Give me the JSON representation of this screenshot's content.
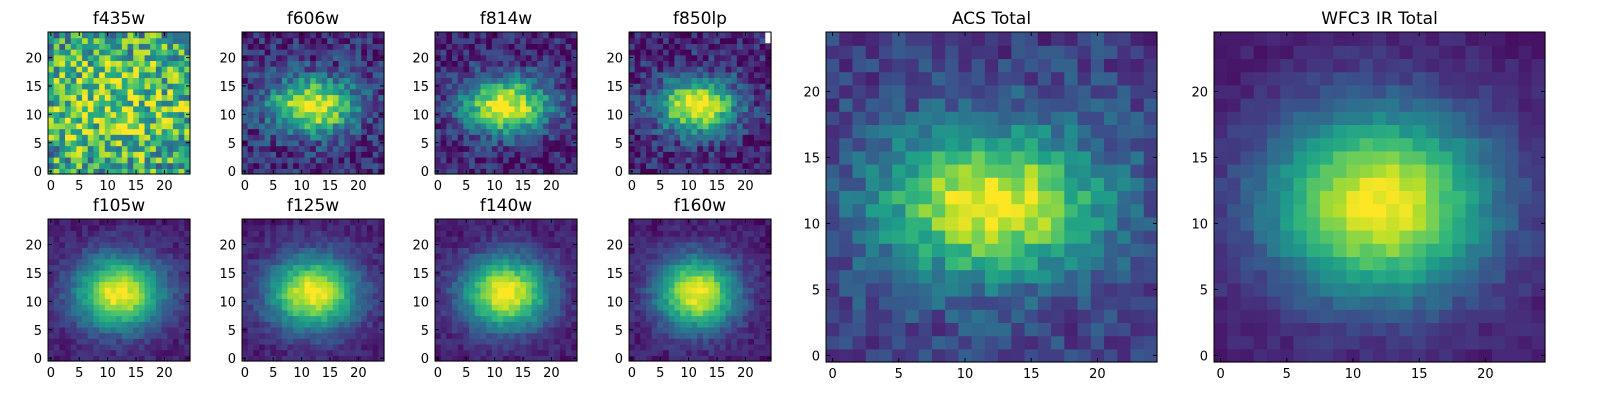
{
  "figure": {
    "colormap": "viridis",
    "colormap_stops": [
      "#440154",
      "#482878",
      "#3e4989",
      "#31688e",
      "#26828e",
      "#1f9e89",
      "#35b779",
      "#6ece58",
      "#b5de2b",
      "#fde725"
    ],
    "background": "#ffffff"
  },
  "chart_data": [
    {
      "type": "heatmap",
      "title": "f435w",
      "grid_size": 25,
      "xticks": [
        0,
        5,
        10,
        15,
        20
      ],
      "yticks": [
        0,
        5,
        10,
        15,
        20
      ],
      "xlim": [
        0,
        24
      ],
      "ylim": [
        0,
        24
      ],
      "center": [
        12,
        11.5
      ],
      "sigma": [
        12,
        9
      ],
      "peak": 0.8,
      "base": 0.45,
      "noise": 0.35,
      "note_values": "pixel intensity map, noisy near-uniform"
    },
    {
      "type": "heatmap",
      "title": "f606w",
      "grid_size": 25,
      "xticks": [
        0,
        5,
        10,
        15,
        20
      ],
      "yticks": [
        0,
        5,
        10,
        15,
        20
      ],
      "xlim": [
        0,
        24
      ],
      "ylim": [
        0,
        24
      ],
      "center": [
        12,
        11.5
      ],
      "sigma": [
        5.5,
        3.5
      ],
      "peak": 1.0,
      "base": 0.12,
      "noise": 0.18
    },
    {
      "type": "heatmap",
      "title": "f814w",
      "grid_size": 25,
      "xticks": [
        0,
        5,
        10,
        15,
        20
      ],
      "yticks": [
        0,
        5,
        10,
        15,
        20
      ],
      "xlim": [
        0,
        24
      ],
      "ylim": [
        0,
        24
      ],
      "center": [
        12,
        11.5
      ],
      "sigma": [
        5.5,
        3.5
      ],
      "peak": 1.0,
      "base": 0.1,
      "noise": 0.16
    },
    {
      "type": "heatmap",
      "title": "f850lp",
      "grid_size": 25,
      "xticks": [
        0,
        5,
        10,
        15,
        20
      ],
      "yticks": [
        0,
        5,
        10,
        15,
        20
      ],
      "xlim": [
        0,
        24
      ],
      "ylim": [
        0,
        24
      ],
      "center": [
        11.5,
        11.5
      ],
      "sigma": [
        5,
        3.5
      ],
      "peak": 1.0,
      "base": 0.1,
      "noise": 0.17
    },
    {
      "type": "heatmap",
      "title": "f105w",
      "grid_size": 25,
      "xticks": [
        0,
        5,
        10,
        15,
        20
      ],
      "yticks": [
        0,
        5,
        10,
        15,
        20
      ],
      "xlim": [
        0,
        24
      ],
      "ylim": [
        0,
        24
      ],
      "center": [
        12,
        11.5
      ],
      "sigma": [
        5.5,
        4.5
      ],
      "peak": 1.0,
      "base": 0.08,
      "noise": 0.07
    },
    {
      "type": "heatmap",
      "title": "f125w",
      "grid_size": 25,
      "xticks": [
        0,
        5,
        10,
        15,
        20
      ],
      "yticks": [
        0,
        5,
        10,
        15,
        20
      ],
      "xlim": [
        0,
        24
      ],
      "ylim": [
        0,
        24
      ],
      "center": [
        12,
        11.5
      ],
      "sigma": [
        5.5,
        4.5
      ],
      "peak": 1.0,
      "base": 0.08,
      "noise": 0.07
    },
    {
      "type": "heatmap",
      "title": "f140w",
      "grid_size": 25,
      "xticks": [
        0,
        5,
        10,
        15,
        20
      ],
      "yticks": [
        0,
        5,
        10,
        15,
        20
      ],
      "xlim": [
        0,
        24
      ],
      "ylim": [
        0,
        24
      ],
      "center": [
        12,
        11.5
      ],
      "sigma": [
        5.5,
        4.5
      ],
      "peak": 1.0,
      "base": 0.07,
      "noise": 0.07
    },
    {
      "type": "heatmap",
      "title": "f160w",
      "grid_size": 25,
      "xticks": [
        0,
        5,
        10,
        15,
        20
      ],
      "yticks": [
        0,
        5,
        10,
        15,
        20
      ],
      "xlim": [
        0,
        24
      ],
      "ylim": [
        0,
        24
      ],
      "center": [
        11.5,
        11.5
      ],
      "sigma": [
        5,
        4.5
      ],
      "peak": 1.0,
      "base": 0.07,
      "noise": 0.07
    },
    {
      "type": "heatmap",
      "title": "ACS Total",
      "grid_size": 25,
      "xticks": [
        0,
        5,
        10,
        15,
        20
      ],
      "yticks": [
        0,
        5,
        10,
        15,
        20
      ],
      "xlim": [
        0,
        24
      ],
      "ylim": [
        0,
        24
      ],
      "center": [
        12,
        11.5
      ],
      "sigma": [
        6,
        4
      ],
      "peak": 1.0,
      "base": 0.18,
      "noise": 0.12
    },
    {
      "type": "heatmap",
      "title": "WFC3 IR Total",
      "grid_size": 25,
      "xticks": [
        0,
        5,
        10,
        15,
        20
      ],
      "yticks": [
        0,
        5,
        10,
        15,
        20
      ],
      "xlim": [
        0,
        24
      ],
      "ylim": [
        0,
        24
      ],
      "center": [
        12,
        11.5
      ],
      "sigma": [
        6,
        5
      ],
      "peak": 1.0,
      "base": 0.07,
      "noise": 0.05
    }
  ]
}
